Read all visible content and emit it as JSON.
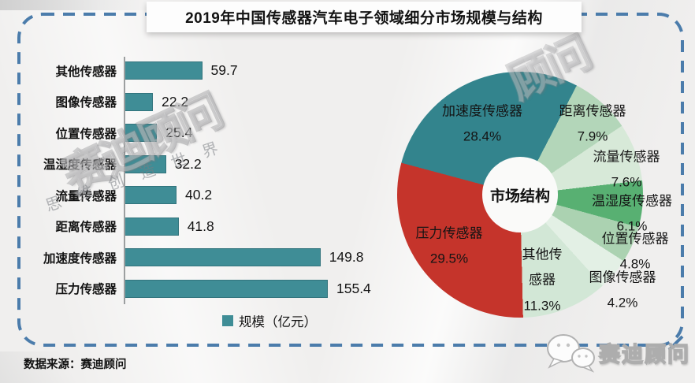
{
  "title": "2019年中国传感器汽车电子领域细分市场规模与结构",
  "footer": {
    "source": "数据来源：赛迪顾问",
    "logo_text": "赛迪顾问"
  },
  "watermark": {
    "main": "赛迪顾问",
    "corner": "顾问",
    "slogan": "思维创造世界"
  },
  "colors": {
    "bar_teal": "#3F8D96",
    "pie_teal": "#33848D",
    "pie_red": "#C5342B",
    "frame_blue": "#4B7CAB"
  },
  "chart_data": [
    {
      "type": "bar",
      "orientation": "horizontal",
      "legend_label": "规模（亿元）",
      "unit": "亿元",
      "categories": [
        "其他传感器",
        "图像传感器",
        "位置传感器",
        "温湿度传感器",
        "流量传感器",
        "距离传感器",
        "加速度传感器",
        "压力传感器"
      ],
      "values": [
        59.7,
        22.2,
        25.4,
        32.2,
        40.2,
        41.8,
        149.8,
        155.4
      ],
      "bar_color": "#3F8D96",
      "xlim": [
        0,
        170
      ],
      "grid": false
    },
    {
      "type": "pie",
      "title": "市场结构",
      "donut": true,
      "start_angle_deg": -75,
      "legend_position": "none",
      "slices": [
        {
          "label": "加速度传感器",
          "value": 28.4,
          "pct": "28.4%",
          "color": "#33848D"
        },
        {
          "label": "距离传感器",
          "value": 7.9,
          "pct": "7.9%",
          "color": "#B3D6B9"
        },
        {
          "label": "流量传感器",
          "value": 7.6,
          "pct": "7.6%",
          "color": "#D7E9D8"
        },
        {
          "label": "温湿度传感器",
          "value": 6.1,
          "pct": "6.1%",
          "color": "#58B072"
        },
        {
          "label": "位置传感器",
          "value": 4.8,
          "pct": "4.8%",
          "color": "#ABD2B1"
        },
        {
          "label": "图像传感器",
          "value": 4.2,
          "pct": "4.2%",
          "color": "#E3F0E5"
        },
        {
          "label": "其他传感器",
          "value": 11.3,
          "pct": "11.3%",
          "color": "#D2E7D6"
        },
        {
          "label": "压力传感器",
          "value": 29.5,
          "pct": "29.5%",
          "color": "#C5342B"
        }
      ]
    }
  ]
}
